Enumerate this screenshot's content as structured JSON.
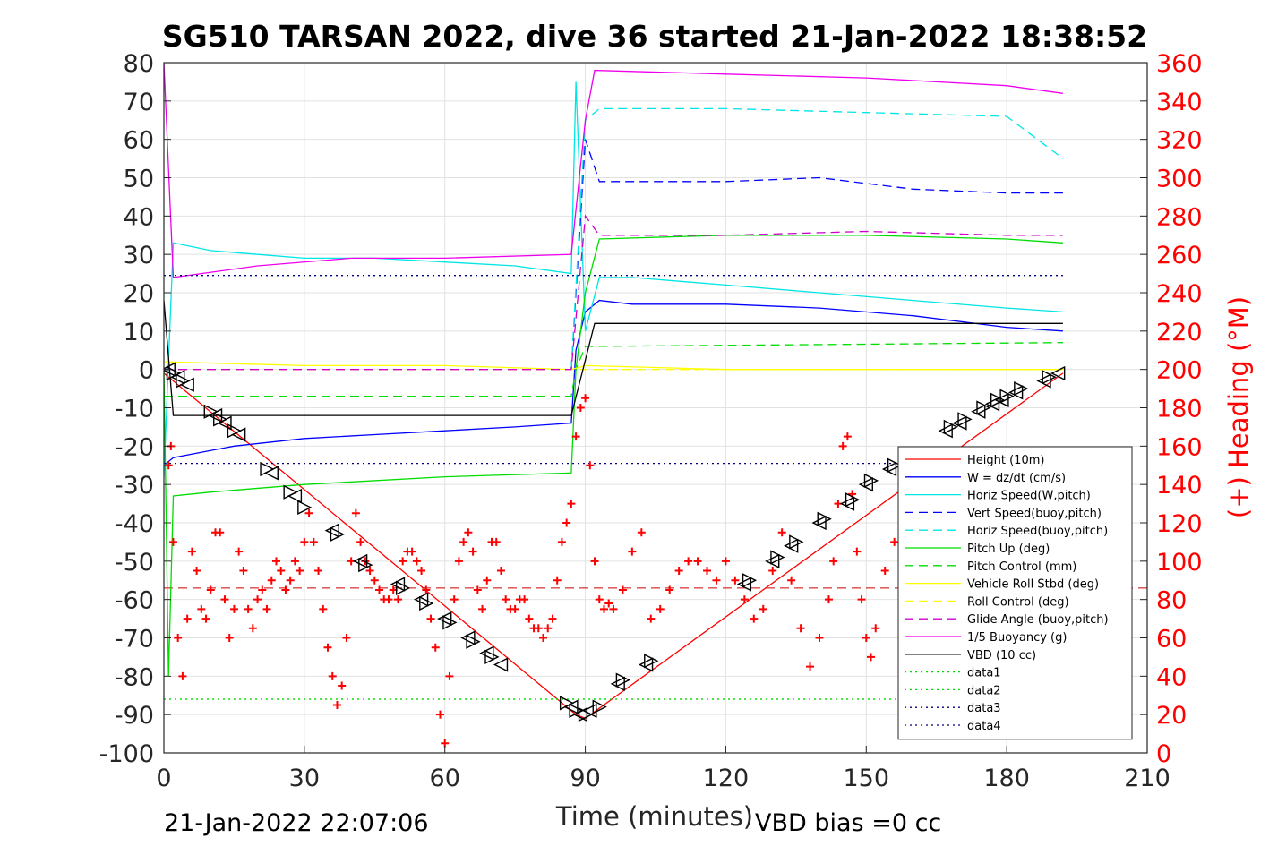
{
  "chart_data": {
    "type": "line",
    "title": "SG510 TARSAN 2022, dive 36 started 21-Jan-2022 18:38:52",
    "xlabel": "Time (minutes)",
    "ylabel": "",
    "y2label": "(+) Heading (°M)",
    "xlim": [
      0,
      210
    ],
    "ylim": [
      -100,
      80
    ],
    "y2lim": [
      0,
      360
    ],
    "xticks": [
      "0",
      "30",
      "60",
      "90",
      "120",
      "150",
      "180",
      "210"
    ],
    "yticks": [
      "80",
      "70",
      "60",
      "50",
      "40",
      "30",
      "20",
      "10",
      "0",
      "-10",
      "-20",
      "-30",
      "-40",
      "-50",
      "-60",
      "-70",
      "-80",
      "-90",
      "-100"
    ],
    "y2ticks": [
      "360",
      "340",
      "320",
      "300",
      "280",
      "260",
      "240",
      "220",
      "200",
      "180",
      "160",
      "140",
      "120",
      "100",
      "80",
      "60",
      "40",
      "20",
      "0"
    ],
    "grid": true,
    "legend_position": "bottom-right",
    "footer_left": "21-Jan-2022 22:07:06",
    "footer_right": "VBD bias =0 cc",
    "series": [
      {
        "name": "Height (10m)",
        "color": "#ff0000",
        "style": "solid",
        "x": [
          0,
          88,
          90,
          192
        ],
        "y": [
          -1,
          -90,
          -91,
          -1
        ]
      },
      {
        "name": "W = dz/dt (cm/s)",
        "color": "#0000ff",
        "style": "solid",
        "x": [
          0,
          2,
          15,
          30,
          45,
          60,
          75,
          87,
          88,
          90,
          93,
          100,
          120,
          140,
          160,
          180,
          192
        ],
        "y": [
          -25,
          -23,
          -20,
          -18,
          -17,
          -16,
          -15,
          -14,
          5,
          15,
          18,
          17,
          17,
          16,
          14,
          11,
          10
        ]
      },
      {
        "name": "Horiz Speed(W,pitch)",
        "color": "#00e5e5",
        "style": "solid",
        "x": [
          0,
          2,
          10,
          20,
          30,
          45,
          60,
          75,
          87,
          88,
          90,
          93,
          100,
          120,
          140,
          160,
          180,
          192
        ],
        "y": [
          -28,
          33,
          31,
          30,
          29,
          29,
          28,
          27,
          25,
          75,
          10,
          24,
          24,
          22,
          20,
          18,
          16,
          15
        ]
      },
      {
        "name": "Vert Speed(buoy,pitch)",
        "color": "#0000ff",
        "style": "dash",
        "x": [
          87,
          90,
          93,
          100,
          120,
          140,
          160,
          180,
          192
        ],
        "y": [
          0,
          60,
          49,
          49,
          49,
          50,
          47,
          46,
          46
        ]
      },
      {
        "name": "Horiz Speed(buoy,pitch)",
        "color": "#00e5e5",
        "style": "dash",
        "x": [
          87,
          90,
          93,
          120,
          150,
          180,
          192
        ],
        "y": [
          0,
          65,
          68,
          68,
          67,
          66,
          55
        ]
      },
      {
        "name": "Pitch Up (deg)",
        "color": "#00dd00",
        "style": "solid",
        "x": [
          0,
          1,
          2,
          10,
          30,
          60,
          87,
          88,
          90,
          93,
          120,
          150,
          180,
          192
        ],
        "y": [
          0,
          -80,
          -33,
          -32,
          -30,
          -28,
          -27,
          0,
          20,
          34,
          35,
          35,
          34,
          33
        ]
      },
      {
        "name": "Pitch Control (mm)",
        "color": "#00dd00",
        "style": "dash",
        "x": [
          0,
          87,
          88,
          90,
          192
        ],
        "y": [
          -7,
          -7,
          0,
          6,
          7
        ]
      },
      {
        "name": "Vehicle Roll Stbd (deg)",
        "color": "#ffff00",
        "style": "solid",
        "x": [
          0,
          30,
          60,
          87,
          90,
          120,
          150,
          180,
          192
        ],
        "y": [
          2,
          1,
          1,
          0,
          1,
          0,
          0,
          0,
          0
        ]
      },
      {
        "name": "Roll Control (deg)",
        "color": "#ffff00",
        "style": "dash",
        "x": [
          0,
          192
        ],
        "y": [
          0,
          0
        ]
      },
      {
        "name": "Glide Angle (buoy,pitch)",
        "color": "#cc00cc",
        "style": "dash",
        "x": [
          0,
          87,
          90,
          93,
          120,
          150,
          180,
          192
        ],
        "y": [
          0,
          0,
          40,
          35,
          35,
          36,
          35,
          35
        ]
      },
      {
        "name": "1/5 Buoyancy (g)",
        "color": "#ee00ee",
        "style": "solid",
        "x": [
          0,
          2,
          20,
          40,
          60,
          87,
          90,
          92,
          120,
          150,
          180,
          192
        ],
        "y": [
          80,
          24,
          27,
          29,
          29,
          30,
          65,
          78,
          77,
          76,
          74,
          72
        ]
      },
      {
        "name": "VBD (10 cc)",
        "color": "#000000",
        "style": "solid",
        "x": [
          0,
          2,
          5,
          87,
          92,
          192
        ],
        "y": [
          18,
          -12,
          -12,
          -12,
          12,
          12
        ]
      },
      {
        "name": "data1",
        "color": "#00dd00",
        "style": "dot",
        "x": [
          0,
          192
        ],
        "y": [
          -86,
          -86
        ]
      },
      {
        "name": "data2",
        "color": "#00dd00",
        "style": "dot",
        "x": [
          0,
          192
        ],
        "y": [
          -86,
          -86
        ]
      },
      {
        "name": "data3",
        "color": "#000080",
        "style": "dot",
        "x": [
          0,
          192
        ],
        "y": [
          24.5,
          24.5
        ]
      },
      {
        "name": "data4",
        "color": "#000080",
        "style": "dot",
        "x": [
          0,
          192
        ],
        "y": [
          -24.5,
          -24.5
        ]
      }
    ],
    "heading": {
      "color": "#ff0000",
      "marker": "+",
      "x": [
        1,
        1.5,
        2,
        3,
        4,
        5,
        6,
        7,
        8,
        9,
        10,
        11,
        12,
        13,
        14,
        15,
        16,
        17,
        18,
        19,
        20,
        21,
        22,
        23,
        24,
        25,
        26,
        27,
        28,
        29,
        30,
        31,
        32,
        33,
        34,
        35,
        36,
        37,
        38,
        39,
        40,
        41,
        42,
        43,
        44,
        45,
        46,
        47,
        48,
        49,
        50,
        51,
        52,
        53,
        54,
        55,
        56,
        57,
        58,
        59,
        60,
        61,
        62,
        63,
        64,
        65,
        66,
        67,
        68,
        69,
        70,
        71,
        72,
        73,
        74,
        75,
        76,
        77,
        78,
        79,
        80,
        81,
        82,
        83,
        84,
        85,
        86,
        87,
        88,
        89,
        90,
        91,
        92,
        93,
        94,
        95,
        96,
        98,
        100,
        102,
        104,
        106,
        108,
        110,
        112,
        114,
        116,
        118,
        120,
        122,
        124,
        126,
        128,
        130,
        132,
        134,
        136,
        138,
        140,
        142,
        143,
        144,
        145,
        146,
        147,
        148,
        149,
        150,
        151,
        152,
        154,
        156,
        158,
        160,
        162,
        164,
        166,
        168,
        170,
        172,
        174,
        176,
        178,
        180,
        182,
        184,
        186,
        188,
        190,
        192
      ],
      "y": [
        150,
        160,
        110,
        60,
        40,
        70,
        105,
        95,
        75,
        70,
        85,
        115,
        115,
        80,
        60,
        75,
        105,
        95,
        75,
        65,
        80,
        85,
        75,
        90,
        100,
        95,
        85,
        90,
        100,
        95,
        110,
        125,
        110,
        95,
        75,
        55,
        40,
        25,
        35,
        60,
        100,
        125,
        110,
        100,
        95,
        90,
        85,
        80,
        80,
        85,
        80,
        100,
        105,
        105,
        100,
        95,
        85,
        70,
        55,
        20,
        5,
        40,
        80,
        100,
        110,
        115,
        105,
        85,
        75,
        90,
        110,
        110,
        95,
        80,
        75,
        75,
        80,
        80,
        70,
        65,
        65,
        60,
        65,
        70,
        90,
        110,
        120,
        130,
        165,
        180,
        185,
        150,
        100,
        80,
        75,
        78,
        75,
        85,
        105,
        115,
        70,
        75,
        85,
        95,
        100,
        100,
        95,
        90,
        100,
        90,
        80,
        70,
        75,
        95,
        115,
        90,
        65,
        45,
        60,
        80,
        100,
        130,
        160,
        165,
        135,
        105,
        80,
        60,
        50,
        65,
        95,
        110,
        90,
        55,
        80,
        95,
        115,
        120,
        115,
        100,
        85,
        70,
        60,
        55,
        60,
        70,
        80,
        95,
        110,
        120
      ]
    },
    "heading_target": {
      "color": "#cc0000",
      "style": "dash",
      "y": 86
    },
    "markers": {
      "color": "#000000",
      "shape": "triangle",
      "x": [
        1,
        2,
        3,
        4,
        5,
        10,
        11,
        12,
        13,
        15,
        16,
        22,
        23,
        27,
        28,
        30,
        36,
        37,
        42,
        43,
        50,
        51,
        55,
        56,
        60,
        61,
        65,
        66,
        69,
        70,
        72,
        86,
        87,
        88,
        89,
        90,
        91,
        93,
        97,
        98,
        103,
        104,
        124,
        125,
        130,
        131,
        134,
        135,
        140,
        141,
        146,
        147,
        150,
        151,
        155,
        156,
        167,
        168,
        170,
        171,
        174,
        175,
        177,
        178,
        179,
        180,
        182,
        183,
        188,
        189,
        191
      ],
      "y": [
        0,
        -1,
        -2,
        -3,
        -4,
        -11,
        -12,
        -13,
        -14,
        -16,
        -17,
        -26,
        -27,
        -32,
        -33,
        -36,
        -42,
        -43,
        -50,
        -51,
        -56,
        -57,
        -60,
        -61,
        -65,
        -66,
        -70,
        -71,
        -74,
        -75,
        -77,
        -87,
        -88,
        -89,
        -90,
        -90,
        -89,
        -88,
        -82,
        -81,
        -77,
        -76,
        -56,
        -55,
        -50,
        -49,
        -46,
        -45,
        -40,
        -39,
        -35,
        -34,
        -30,
        -29,
        -26,
        -25,
        -16,
        -15,
        -14,
        -13,
        -11,
        -10,
        -9,
        -8,
        -8,
        -7,
        -6,
        -5,
        -3,
        -2,
        -1
      ]
    }
  }
}
